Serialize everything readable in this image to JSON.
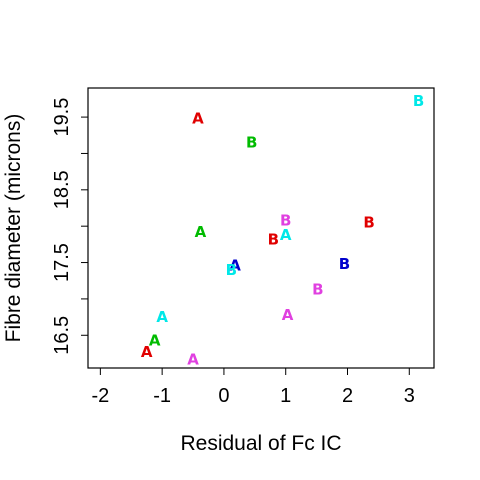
{
  "chart_data": {
    "type": "scatter",
    "xlabel": "Residual of Fc IC",
    "ylabel": "Fibre diameter (microns)",
    "xlim": [
      -2.2,
      3.4
    ],
    "ylim": [
      16.05,
      19.9
    ],
    "xticks": [
      -2,
      -1,
      0,
      1,
      2,
      3
    ],
    "yticks": [
      16.5,
      17.0,
      17.5,
      18.0,
      18.5,
      19.0,
      19.5
    ],
    "yticklabels": {
      "16.5": "16.5",
      "17.5": "17.5",
      "18.5": "18.5",
      "19.5": "19.5"
    },
    "grid": false,
    "legend": "none",
    "marker": "text",
    "points": [
      {
        "x": -0.42,
        "y": 19.48,
        "label": "A",
        "color": "#e00000"
      },
      {
        "x": 3.15,
        "y": 19.72,
        "label": "B",
        "color": "#00e8e8"
      },
      {
        "x": 0.45,
        "y": 19.15,
        "label": "B",
        "color": "#00bb00"
      },
      {
        "x": -0.38,
        "y": 17.92,
        "label": "A",
        "color": "#00bb00"
      },
      {
        "x": 1.0,
        "y": 18.08,
        "label": "B",
        "color": "#e040e0"
      },
      {
        "x": 0.8,
        "y": 17.82,
        "label": "B",
        "color": "#e00000"
      },
      {
        "x": 1.0,
        "y": 17.88,
        "label": "A",
        "color": "#00e8e8"
      },
      {
        "x": 2.35,
        "y": 18.05,
        "label": "B",
        "color": "#e00000"
      },
      {
        "x": 0.18,
        "y": 17.46,
        "label": "A",
        "color": "#0000cc"
      },
      {
        "x": 0.12,
        "y": 17.4,
        "label": "B",
        "color": "#00e8e8"
      },
      {
        "x": 1.95,
        "y": 17.48,
        "label": "B",
        "color": "#0000cc"
      },
      {
        "x": 1.52,
        "y": 17.13,
        "label": "B",
        "color": "#e040e0"
      },
      {
        "x": -1.0,
        "y": 16.75,
        "label": "A",
        "color": "#00e8e8"
      },
      {
        "x": 1.03,
        "y": 16.78,
        "label": "A",
        "color": "#e040e0"
      },
      {
        "x": -1.12,
        "y": 16.43,
        "label": "A",
        "color": "#00bb00"
      },
      {
        "x": -1.25,
        "y": 16.27,
        "label": "A",
        "color": "#e00000"
      },
      {
        "x": -0.5,
        "y": 16.17,
        "label": "A",
        "color": "#e040e0"
      }
    ]
  }
}
